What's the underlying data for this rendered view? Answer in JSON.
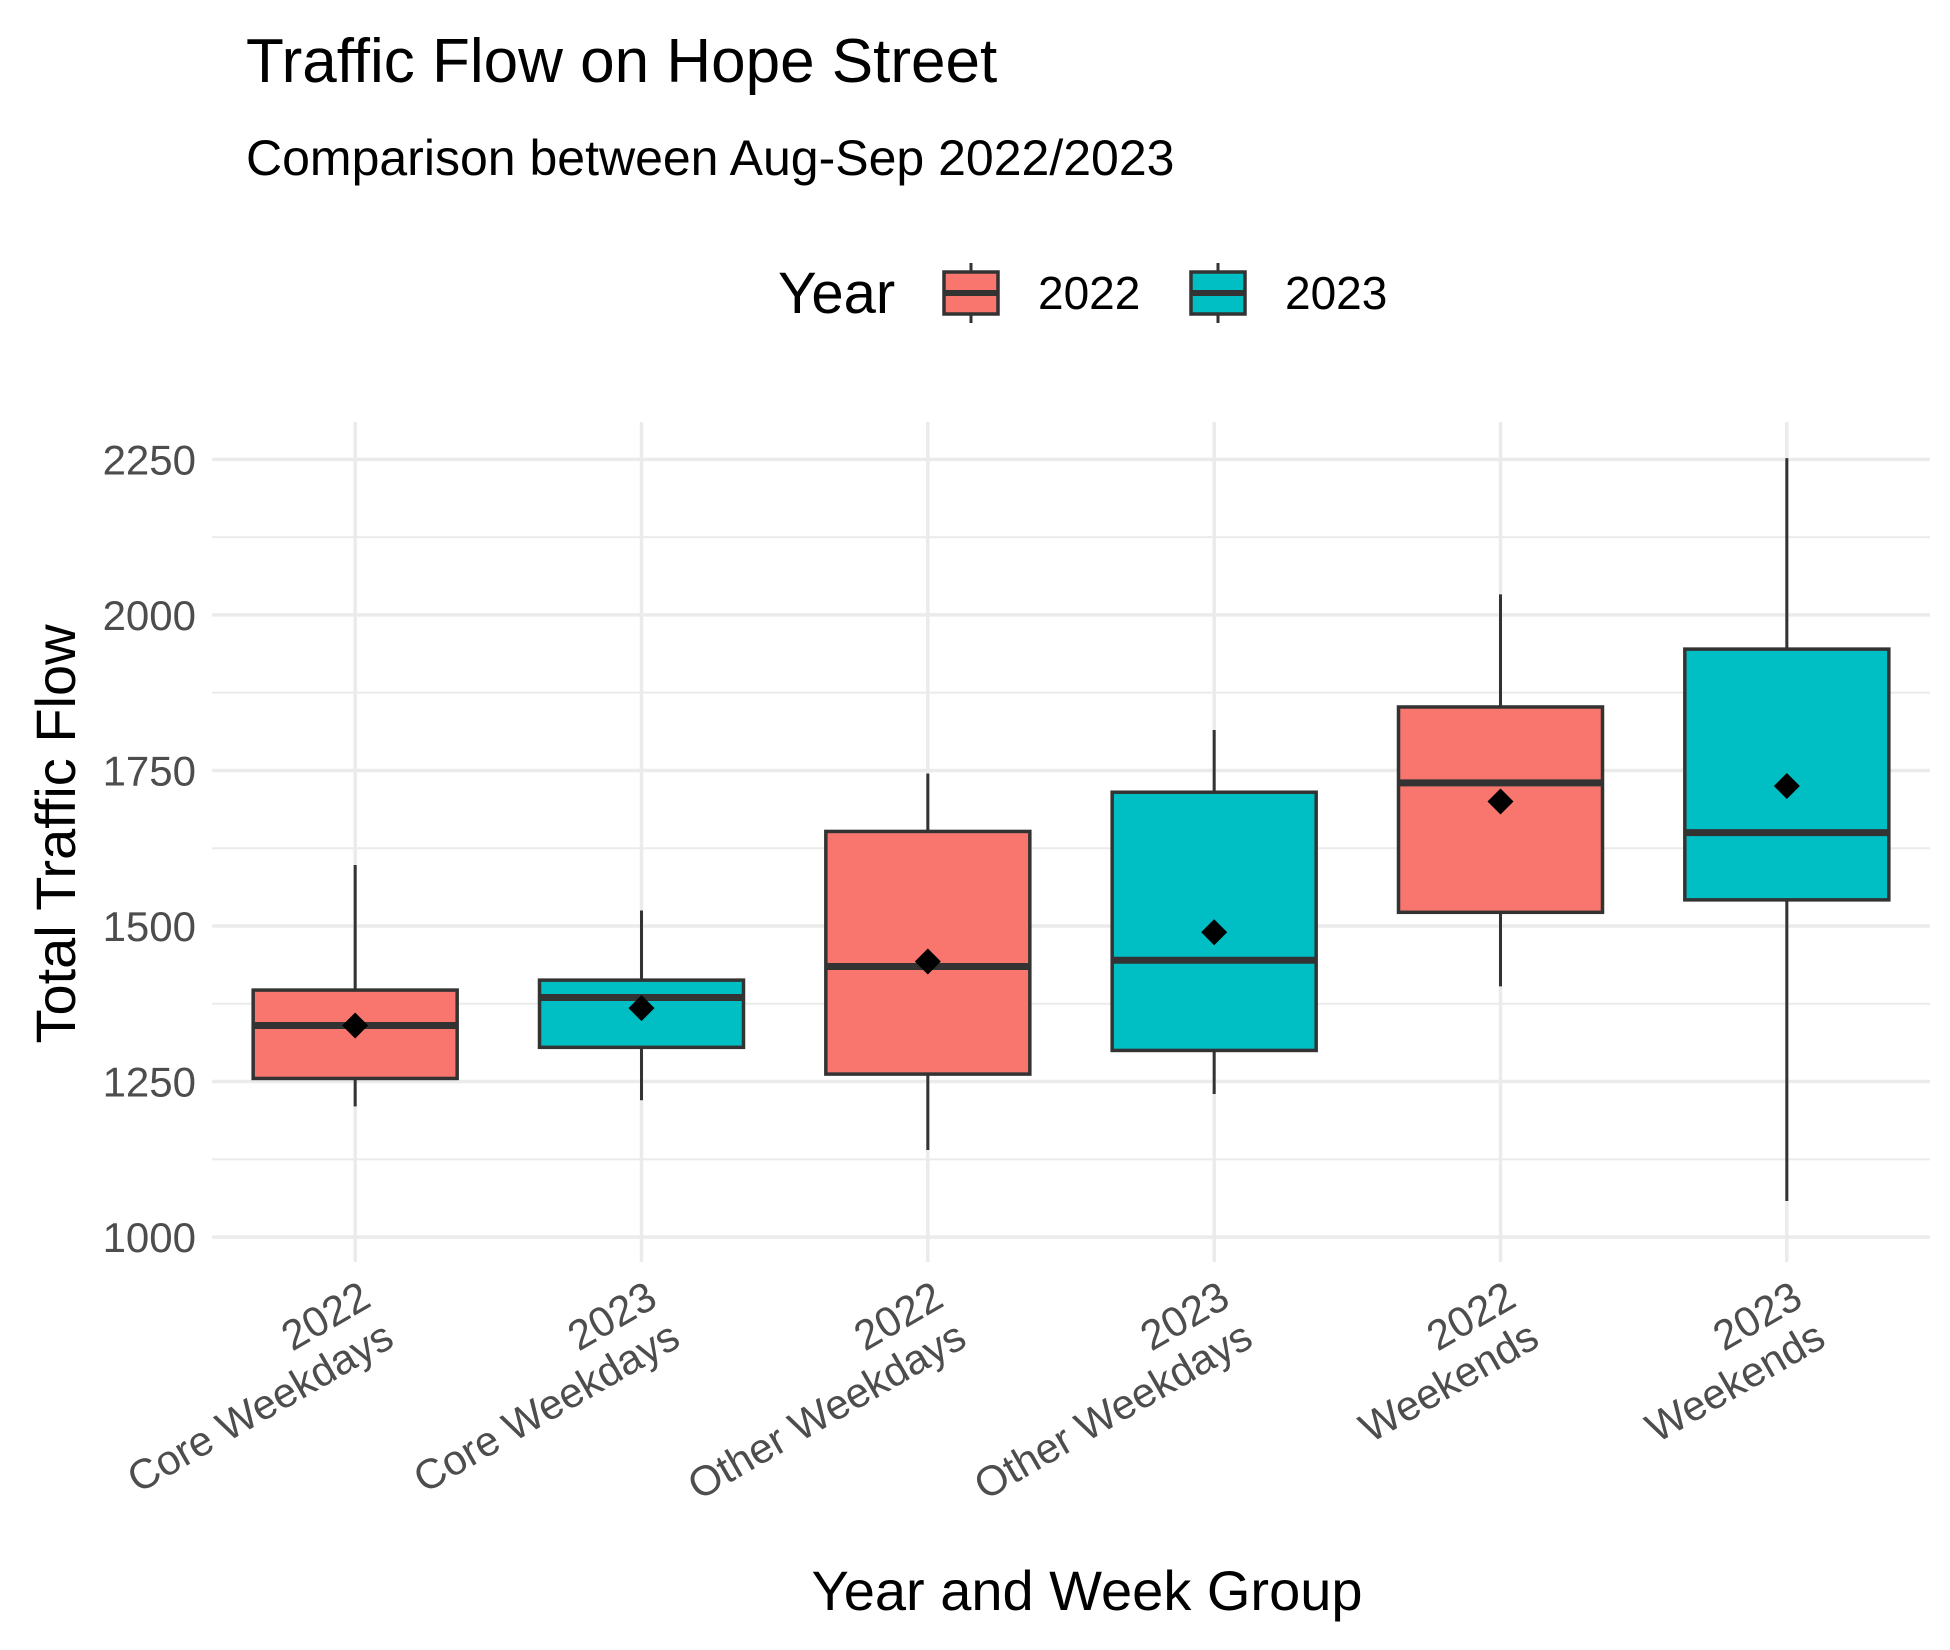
{
  "chart_data": {
    "type": "box",
    "title": "Traffic Flow on Hope Street",
    "subtitle": "Comparison between Aug-Sep 2022/2023",
    "xlabel": "Year and Week Group",
    "ylabel": "Total Traffic Flow",
    "ylim": [
      960,
      2310
    ],
    "yticks": [
      1000,
      1250,
      1500,
      1750,
      2000,
      2250
    ],
    "grid": true,
    "legend": {
      "title": "Year",
      "placement": "top",
      "items": [
        {
          "label": "2022",
          "color": "#F8766D"
        },
        {
          "label": "2023",
          "color": "#00BFC4"
        }
      ]
    },
    "categories": [
      {
        "line1": "2022",
        "line2": "Core Weekdays"
      },
      {
        "line1": "2023",
        "line2": "Core Weekdays"
      },
      {
        "line1": "2022",
        "line2": "Other Weekdays"
      },
      {
        "line1": "2023",
        "line2": "Other Weekdays"
      },
      {
        "line1": "2022",
        "line2": "Weekends"
      },
      {
        "line1": "2023",
        "line2": "Weekends"
      }
    ],
    "boxes": [
      {
        "year": "2022",
        "min": 1210,
        "q1": 1255,
        "median": 1340,
        "q3": 1397,
        "max": 1598,
        "mean": 1340
      },
      {
        "year": "2023",
        "min": 1220,
        "q1": 1305,
        "median": 1385,
        "q3": 1413,
        "max": 1525,
        "mean": 1368
      },
      {
        "year": "2022",
        "min": 1140,
        "q1": 1262,
        "median": 1435,
        "q3": 1652,
        "max": 1745,
        "mean": 1443
      },
      {
        "year": "2023",
        "min": 1230,
        "q1": 1300,
        "median": 1445,
        "q3": 1715,
        "max": 1815,
        "mean": 1490
      },
      {
        "year": "2022",
        "min": 1403,
        "q1": 1522,
        "median": 1730,
        "q3": 1852,
        "max": 2033,
        "mean": 1700
      },
      {
        "year": "2023",
        "min": 1058,
        "q1": 1542,
        "median": 1650,
        "q3": 1945,
        "max": 2252,
        "mean": 1725
      }
    ]
  }
}
